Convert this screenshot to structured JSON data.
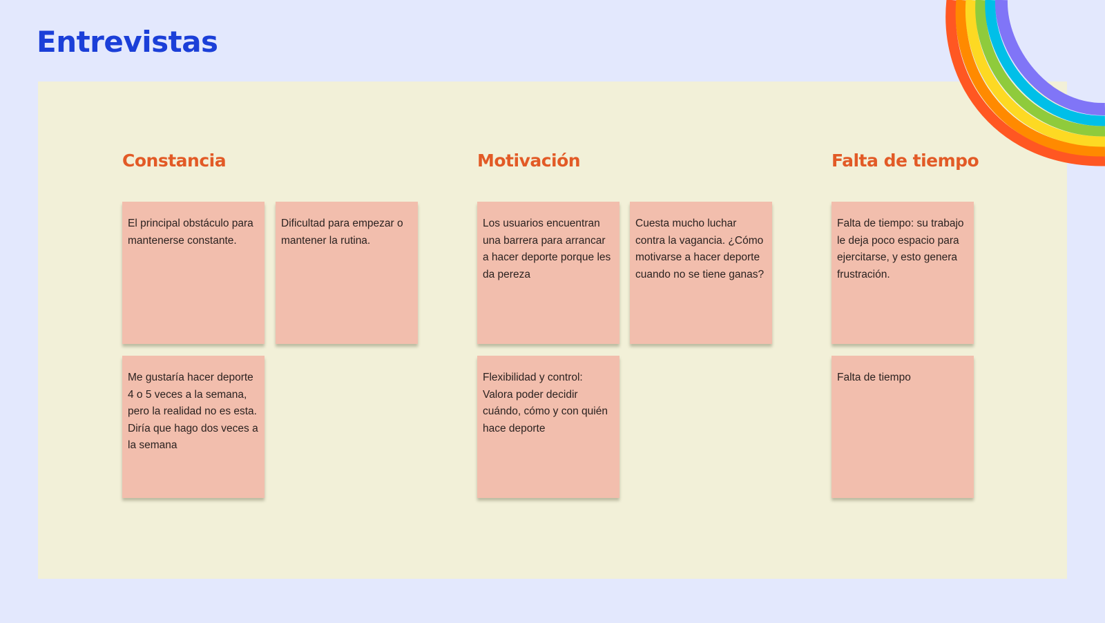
{
  "page_title": "Entrevistas",
  "colors": {
    "title": "#1b3fd8",
    "heading": "#e25a26",
    "board": "#f2f0d8",
    "background": "#e3e8fd",
    "sticky_note": "#f2bead",
    "rainbow": [
      "#ff5722",
      "#ff8a00",
      "#fdd923",
      "#8fcb3c",
      "#00bfe8",
      "#8075f7"
    ]
  },
  "decoration": "rainbow",
  "columns": [
    {
      "heading": "Constancia",
      "notes": [
        "El principal obstáculo para mantenerse constante.",
        "Dificultad para empezar o mantener la rutina.",
        "Me gustaría hacer deporte 4 o 5 veces a la semana, pero la realidad no es esta. Diría que hago dos veces a la semana"
      ]
    },
    {
      "heading": "Motivación",
      "notes": [
        "Los usuarios encuentran una barrera para arrancar a hacer deporte porque les da pereza",
        "Cuesta mucho luchar contra la vagancia. ¿Cómo motivarse a hacer deporte cuando no se tiene ganas?",
        "Flexibilidad y control: Valora poder decidir cuándo, cómo y con quién hace deporte"
      ]
    },
    {
      "heading": "Falta de tiempo",
      "notes": [
        "Falta de tiempo: su trabajo le deja poco espacio para ejercitarse, y esto genera frustración.",
        "Falta de tiempo"
      ]
    }
  ]
}
